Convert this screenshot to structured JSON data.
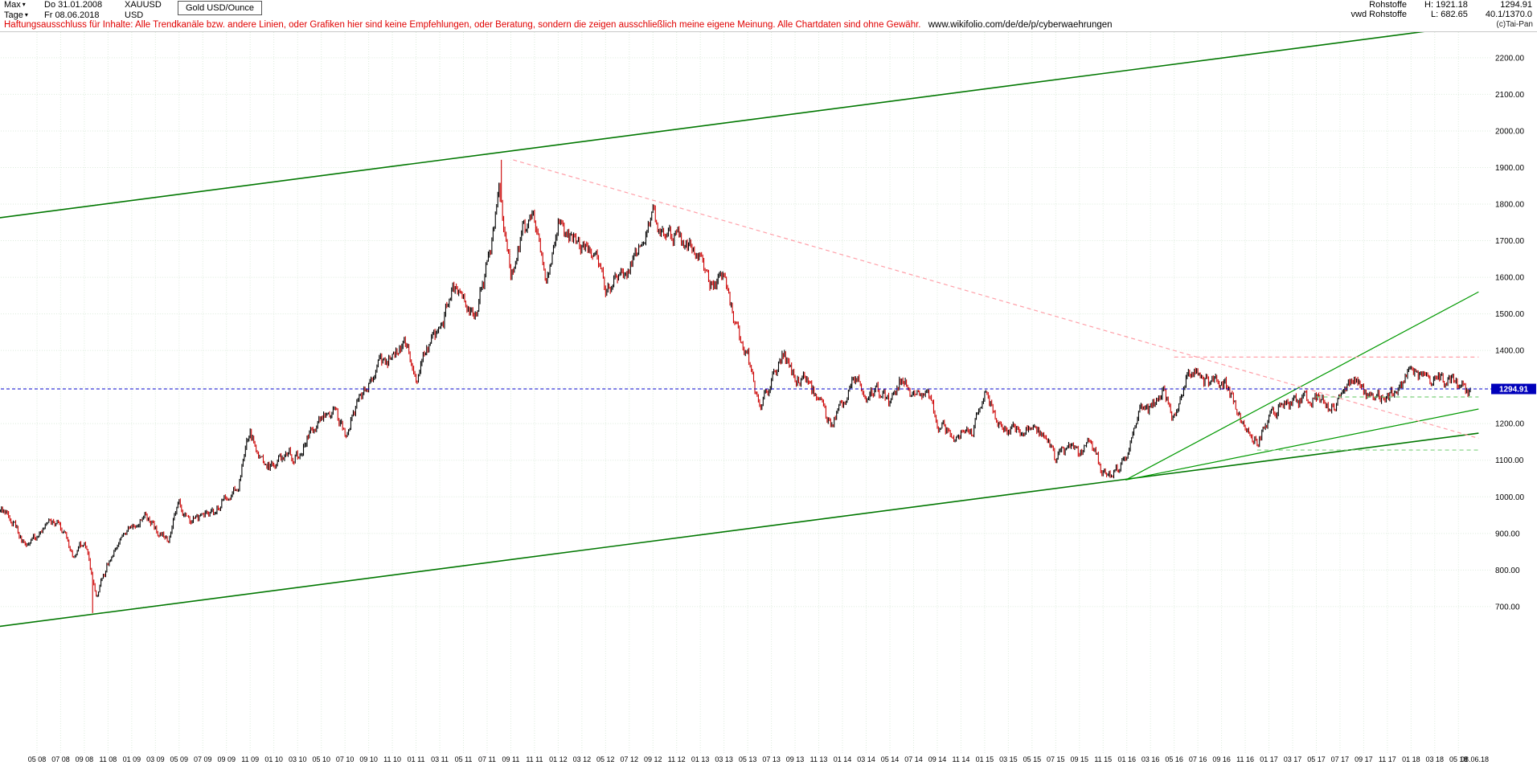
{
  "window": {
    "app": "Tai-Pan",
    "copyright": "(c)Tai-Pan"
  },
  "icons": {
    "dropdown_arrow": "▾"
  },
  "header": {
    "range_dropdown": "Max",
    "start_date": "Do 31.01.2008",
    "symbol": "XAUUSD",
    "instrument": "Gold USD/Ounce",
    "period_dropdown": "Tage",
    "end_date": "Fr 08.06.2018",
    "currency": "USD",
    "right": {
      "category": "Rohstoffe",
      "high": "H: 1921.18",
      "last": "1294.91",
      "source": "vwd Rohstoffe",
      "low": "L: 682.65",
      "range": "40.1/1370.0"
    }
  },
  "disclaimer": {
    "text": "Haftungsausschluss für Inhalte: Alle Trendkanäle bzw. andere Linien, oder Grafiken hier sind keine Empfehlungen, oder Beratung, sondern die zeigen ausschließlich meine eigene Meinung. Alle Chartdaten sind ohne Gewähr.",
    "link": "www.wikifolio.com/de/de/p/cyberwaehrungen"
  },
  "chart_data": {
    "type": "candlestick",
    "title": "Gold USD/Ounce",
    "symbol": "XAUUSD",
    "period": "Tage (daily), range Max: 31.01.2008 - 08.06.2018",
    "last_price": 1294.91,
    "high_overall": 1921.18,
    "low_overall": 682.65,
    "x_months": {
      "start": "2008-01",
      "end": "2018-06",
      "count": 126
    },
    "monthly_close": [
      923,
      971,
      933,
      871,
      885,
      930,
      918,
      833,
      884,
      730,
      816,
      870,
      919,
      952,
      916,
      883,
      975,
      934,
      939,
      955,
      1008,
      1040,
      1175,
      1096,
      1083,
      1118,
      1113,
      1180,
      1215,
      1244,
      1169,
      1246,
      1307,
      1359,
      1386,
      1421,
      1327,
      1411,
      1439,
      1563,
      1536,
      1502,
      1628,
      1826,
      1620,
      1722,
      1746,
      1564,
      1737,
      1711,
      1668,
      1664,
      1558,
      1598,
      1615,
      1691,
      1776,
      1719,
      1715,
      1676,
      1661,
      1580,
      1597,
      1469,
      1394,
      1235,
      1313,
      1395,
      1327,
      1324,
      1253,
      1202,
      1244,
      1326,
      1284,
      1292,
      1250,
      1327,
      1283,
      1287,
      1208,
      1173,
      1175,
      1184,
      1283,
      1213,
      1184,
      1184,
      1191,
      1171,
      1095,
      1135,
      1114,
      1142,
      1065,
      1061,
      1118,
      1234,
      1233,
      1293,
      1212,
      1322,
      1351,
      1309,
      1316,
      1272,
      1174,
      1152,
      1211,
      1248,
      1249,
      1268,
      1269,
      1242,
      1269,
      1321,
      1280,
      1271,
      1275,
      1303,
      1345,
      1318,
      1325,
      1315,
      1298,
      1294.91
    ],
    "extremes": {
      "high": {
        "month_index": 44,
        "month": "2011-09",
        "value": 1921.18
      },
      "low": {
        "month_index": 9,
        "month": "2008-10",
        "value": 682.65
      }
    },
    "y_axis": {
      "side": "right",
      "domain": [
        300,
        2270
      ],
      "top_tick": 2200,
      "step": 100,
      "labels": [
        "2200.00",
        "2100.00",
        "2000.00",
        "1900.00",
        "1800.00",
        "1700.00",
        "1600.00",
        "1500.00",
        "1400.00",
        "1300.00",
        "1200.00",
        "1100.00",
        "1000.00",
        "900.00",
        "800.00",
        "700.00"
      ]
    },
    "x_tick_labels": [
      "05 08",
      "07 08",
      "09 08",
      "11 08",
      "01 09",
      "03 09",
      "05 09",
      "07 09",
      "09 09",
      "11 09",
      "01 10",
      "03 10",
      "05 10",
      "07 10",
      "09 10",
      "11 10",
      "01 11",
      "03 11",
      "05 11",
      "07 11",
      "09 11",
      "11 11",
      "01 12",
      "03 12",
      "05 12",
      "07 12",
      "09 12",
      "11 12",
      "01 13",
      "03 13",
      "05 13",
      "07 13",
      "09 13",
      "11 13",
      "01 14",
      "03 14",
      "05 14",
      "07 14",
      "09 14",
      "11 14",
      "01 15",
      "03 15",
      "05 15",
      "07 15",
      "09 15",
      "11 15",
      "01 16",
      "03 16",
      "05 16",
      "07 16",
      "09 16",
      "11 16",
      "01 17",
      "03 17",
      "05 17",
      "07 17",
      "09 17",
      "11 17",
      "01 18",
      "03 18",
      "05 18"
    ],
    "x_axis_last_label": "08.06.18",
    "annotations": [
      {
        "name": "upper-trend-channel-line",
        "color": "#007700",
        "width": 1.6,
        "dash": "",
        "m1": -1,
        "p1": 1755,
        "m2": 125.7,
        "p2": 2291
      },
      {
        "name": "lower-trend-channel-line",
        "color": "#007700",
        "width": 1.6,
        "dash": "",
        "m1": -1,
        "p1": 638,
        "m2": 125.7,
        "p2": 1174
      },
      {
        "name": "support-fan-line-flat",
        "color": "#009900",
        "width": 1.2,
        "dash": "",
        "m1": 95.9,
        "p1": 1046,
        "m2": 125.7,
        "p2": 1240
      },
      {
        "name": "support-fan-line-steep",
        "color": "#009900",
        "width": 1.2,
        "dash": "",
        "m1": 95.9,
        "p1": 1046,
        "m2": 125.7,
        "p2": 1560
      },
      {
        "name": "downtrend-from-peak-dashed",
        "color": "#ff9fa8",
        "width": 1.2,
        "dash": "5 4",
        "m1": 44.2,
        "p1": 1921,
        "m2": 125.7,
        "p2": 1160
      },
      {
        "name": "resistance-horizontal-dashed",
        "color": "#ff9fa8",
        "width": 1.2,
        "dash": "5 4",
        "m1": 100,
        "p1": 1382,
        "m2": 125.7,
        "p2": 1382
      },
      {
        "name": "support-horizontal-dashed-upper",
        "color": "#7ed07e",
        "width": 1.2,
        "dash": "5 4",
        "m1": 112,
        "p1": 1273,
        "m2": 125.7,
        "p2": 1273
      },
      {
        "name": "support-horizontal-dashed-lower",
        "color": "#7ed07e",
        "width": 1.2,
        "dash": "5 4",
        "m1": 107,
        "p1": 1128,
        "m2": 125.7,
        "p2": 1128
      }
    ],
    "colors": {
      "up": "#000000",
      "down": "#cc0000",
      "grid": "#dcebdc",
      "last_price_line": "#0000cc",
      "last_price_box": "#0000bb"
    }
  }
}
